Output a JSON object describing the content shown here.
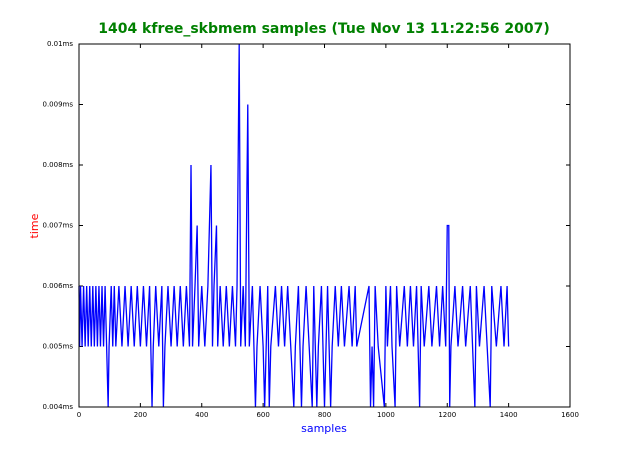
{
  "chart_data": {
    "type": "line",
    "title": "1404 kfree_skbmem samples (Tue Nov 13 11:22:56 2007)",
    "x_label": "samples",
    "y_label": "time",
    "series": [
      {
        "color": "#0000ff",
        "x": [
          0,
          2,
          5,
          10,
          15,
          20,
          25,
          30,
          35,
          40,
          45,
          50,
          55,
          60,
          65,
          70,
          75,
          80,
          85,
          90,
          95,
          98,
          105,
          110,
          115,
          120,
          130,
          140,
          150,
          160,
          170,
          180,
          190,
          200,
          210,
          220,
          230,
          238,
          242,
          250,
          260,
          270,
          275,
          280,
          290,
          300,
          310,
          320,
          330,
          340,
          350,
          360,
          365,
          370,
          378,
          385,
          390,
          400,
          410,
          420,
          430,
          435,
          440,
          448,
          452,
          460,
          470,
          480,
          490,
          500,
          510,
          515,
          522,
          527,
          535,
          542,
          550,
          555,
          565,
          570,
          575,
          580,
          590,
          600,
          605,
          610,
          615,
          620,
          625,
          640,
          650,
          660,
          670,
          680,
          690,
          700,
          705,
          715,
          725,
          730,
          740,
          750,
          760,
          765,
          775,
          780,
          790,
          800,
          805,
          810,
          820,
          825,
          835,
          845,
          855,
          865,
          880,
          890,
          900,
          905,
          945,
          950,
          955,
          960,
          965,
          975,
          995,
          1000,
          1005,
          1015,
          1020,
          1030,
          1035,
          1045,
          1060,
          1070,
          1080,
          1090,
          1100,
          1110,
          1115,
          1125,
          1140,
          1150,
          1165,
          1175,
          1185,
          1195,
          1200,
          1205,
          1208,
          1212,
          1225,
          1235,
          1250,
          1260,
          1275,
          1290,
          1295,
          1305,
          1320,
          1330,
          1340,
          1345,
          1360,
          1375,
          1385,
          1395,
          1400
        ],
        "values": [
          0.006,
          0.005,
          0.006,
          0.005,
          0.006,
          0.005,
          0.006,
          0.005,
          0.006,
          0.005,
          0.006,
          0.005,
          0.006,
          0.005,
          0.006,
          0.005,
          0.006,
          0.005,
          0.006,
          0.005,
          0.004,
          0.005,
          0.006,
          0.005,
          0.006,
          0.005,
          0.006,
          0.005,
          0.006,
          0.005,
          0.006,
          0.005,
          0.006,
          0.005,
          0.006,
          0.005,
          0.006,
          0.004,
          0.005,
          0.006,
          0.005,
          0.006,
          0.004,
          0.005,
          0.006,
          0.005,
          0.006,
          0.005,
          0.006,
          0.005,
          0.006,
          0.005,
          0.008,
          0.005,
          0.006,
          0.007,
          0.005,
          0.006,
          0.005,
          0.006,
          0.008,
          0.005,
          0.006,
          0.007,
          0.005,
          0.006,
          0.005,
          0.006,
          0.005,
          0.006,
          0.005,
          0.006,
          0.01,
          0.005,
          0.006,
          0.005,
          0.009,
          0.005,
          0.006,
          0.005,
          0.004,
          0.005,
          0.006,
          0.005,
          0.004,
          0.005,
          0.006,
          0.004,
          0.005,
          0.006,
          0.005,
          0.006,
          0.005,
          0.006,
          0.005,
          0.004,
          0.005,
          0.006,
          0.004,
          0.005,
          0.006,
          0.005,
          0.004,
          0.006,
          0.004,
          0.005,
          0.006,
          0.004,
          0.005,
          0.006,
          0.004,
          0.005,
          0.006,
          0.005,
          0.006,
          0.005,
          0.006,
          0.005,
          0.006,
          0.005,
          0.006,
          0.004,
          0.005,
          0.004,
          0.006,
          0.005,
          0.004,
          0.006,
          0.005,
          0.006,
          0.005,
          0.004,
          0.006,
          0.005,
          0.006,
          0.005,
          0.006,
          0.005,
          0.006,
          0.004,
          0.006,
          0.005,
          0.006,
          0.005,
          0.006,
          0.005,
          0.006,
          0.005,
          0.007,
          0.007,
          0.004,
          0.005,
          0.006,
          0.005,
          0.006,
          0.005,
          0.006,
          0.004,
          0.006,
          0.005,
          0.006,
          0.005,
          0.004,
          0.006,
          0.005,
          0.006,
          0.005,
          0.006,
          0.005
        ]
      }
    ],
    "xlim": [
      0,
      1600
    ],
    "xticks": [
      0,
      200,
      400,
      600,
      800,
      1000,
      1200,
      1400,
      1600
    ],
    "ylim": [
      0.004,
      0.01
    ],
    "yticks": [
      {
        "value": 0.004,
        "label": "0.004ms"
      },
      {
        "value": 0.005,
        "label": "0.005ms"
      },
      {
        "value": 0.006,
        "label": "0.006ms"
      },
      {
        "value": 0.007,
        "label": "0.007ms"
      },
      {
        "value": 0.008,
        "label": "0.008ms"
      },
      {
        "value": 0.009,
        "label": "0.009ms"
      },
      {
        "value": 0.01,
        "label": "0.01ms"
      }
    ]
  }
}
